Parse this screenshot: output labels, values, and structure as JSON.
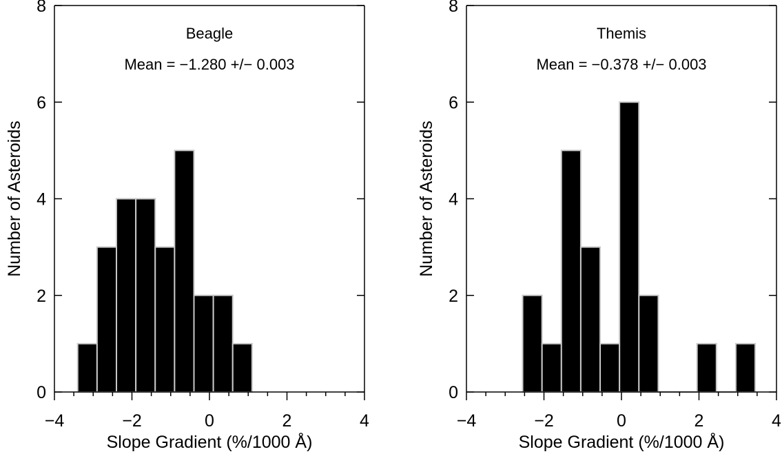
{
  "chart_data": [
    {
      "type": "bar",
      "title": "Beagle",
      "subtitle": "Mean = −1.280 +/− 0.003",
      "xlabel": "Slope Gradient (%/1000 Å)",
      "ylabel": "Number of Asteroids",
      "xlim": [
        -4,
        4
      ],
      "ylim": [
        0,
        8
      ],
      "x_major_ticks": [
        -4,
        -2,
        0,
        2,
        4
      ],
      "x_tick_labels": [
        "−4",
        "−2",
        "0",
        "2",
        "4"
      ],
      "y_major_ticks": [
        0,
        2,
        4,
        6,
        8
      ],
      "y_tick_labels": [
        "0",
        "2",
        "4",
        "6",
        "8"
      ],
      "bin_width": 0.5,
      "bin_starts": [
        -3.4,
        -2.9,
        -2.4,
        -1.9,
        -1.4,
        -0.9,
        -0.4,
        0.1,
        0.6
      ],
      "values": [
        1,
        3,
        4,
        4,
        3,
        5,
        2,
        2,
        1
      ],
      "grid": false
    },
    {
      "type": "bar",
      "title": "Themis",
      "subtitle": "Mean = −0.378 +/− 0.003",
      "xlabel": "Slope Gradient (%/1000 Å)",
      "ylabel": "Number of Asteroids",
      "xlim": [
        -4,
        4
      ],
      "ylim": [
        0,
        8
      ],
      "x_major_ticks": [
        -4,
        -2,
        0,
        2,
        4
      ],
      "x_tick_labels": [
        "−4",
        "−2",
        "0",
        "2",
        "4"
      ],
      "y_major_ticks": [
        0,
        2,
        4,
        6,
        8
      ],
      "y_tick_labels": [
        "0",
        "2",
        "4",
        "6",
        "8"
      ],
      "bin_width": 0.5,
      "bin_starts": [
        -2.55,
        -2.05,
        -1.55,
        -1.05,
        -0.55,
        -0.05,
        0.45,
        0.95,
        1.45,
        1.95,
        2.45,
        2.95
      ],
      "values": [
        2,
        1,
        5,
        3,
        1,
        6,
        2,
        0,
        0,
        1,
        0,
        1
      ],
      "grid": false
    }
  ],
  "colors": {
    "bar_fill": "#000000",
    "bar_edge": "#c8c8c8",
    "axis": "#000000"
  }
}
